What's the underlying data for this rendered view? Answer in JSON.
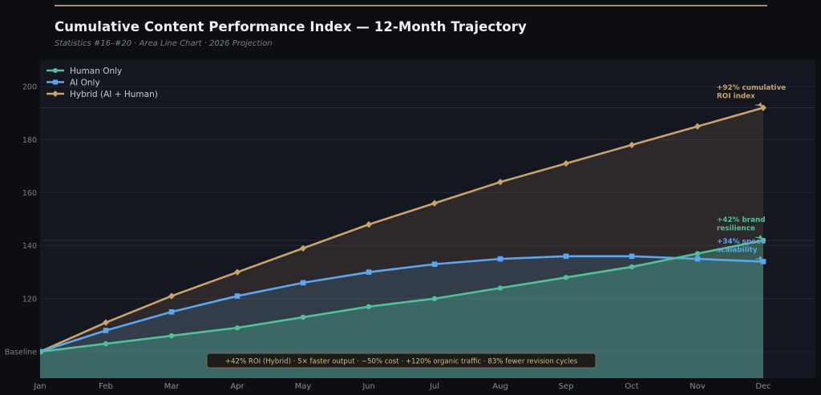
{
  "header": {
    "title": "Cumulative Content Performance Index — 12-Month Trajectory",
    "subtitle": "Statistics #16–#20  ·  Area Line Chart  ·  2026 Projection"
  },
  "chart_data": {
    "type": "area",
    "title": "Cumulative Content Performance Index — 12-Month Trajectory",
    "categories": [
      "Jan",
      "Feb",
      "Mar",
      "Apr",
      "May",
      "Jun",
      "Jul",
      "Aug",
      "Sep",
      "Oct",
      "Nov",
      "Dec"
    ],
    "ylim": [
      90,
      210
    ],
    "yticks": [
      {
        "value": 100,
        "label": "Baseline"
      },
      {
        "value": 120,
        "label": "120"
      },
      {
        "value": 140,
        "label": "140"
      },
      {
        "value": 160,
        "label": "160"
      },
      {
        "value": 180,
        "label": "180"
      },
      {
        "value": 200,
        "label": "200"
      }
    ],
    "grid": true,
    "legend_position": "top-left",
    "series": [
      {
        "name": "Human Only",
        "color": "#4fc29a",
        "marker": "circle",
        "values": [
          100,
          103,
          106,
          109,
          113,
          117,
          120,
          124,
          128,
          132,
          137,
          142
        ]
      },
      {
        "name": "AI Only",
        "color": "#5aa6f0",
        "marker": "square",
        "values": [
          100,
          108,
          115,
          121,
          126,
          130,
          133,
          135,
          136,
          136,
          135,
          134
        ]
      },
      {
        "name": "Hybrid (AI + Human)",
        "color": "#c9a46a",
        "marker": "diamond",
        "values": [
          100,
          111,
          121,
          130,
          139,
          148,
          156,
          164,
          171,
          178,
          185,
          192
        ]
      }
    ],
    "annotations": [
      {
        "lines": [
          "+92% cumulative",
          "ROI index"
        ],
        "color": "#c9a46a",
        "series": 2
      },
      {
        "lines": [
          "+42% brand",
          "resilience"
        ],
        "color": "#4fc29a",
        "series": 0
      },
      {
        "lines": [
          "+34% speed",
          "scalability"
        ],
        "color": "#5aa6f0",
        "series": 1
      }
    ],
    "stats_banner": "+42% ROI (Hybrid)  ·  5× faster output  ·  −50% cost  ·  +120% organic traffic  ·  83% fewer revision cycles"
  }
}
